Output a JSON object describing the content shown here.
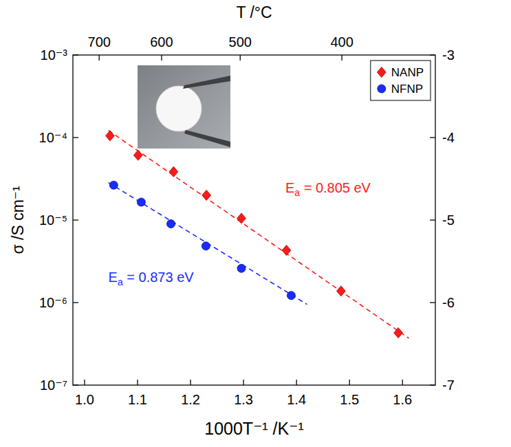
{
  "chart_data": {
    "type": "scatter",
    "x_label": "1000T⁻¹ /K⁻¹",
    "y_label": "σ /S cm⁻¹",
    "x2_label": "T /°C",
    "log": "y",
    "legend": "upper right",
    "xlim": [
      0.978,
      1.662
    ],
    "xticks": [
      {
        "value": 1,
        "label": "1.0"
      },
      1.1,
      1.2,
      1.3,
      1.4,
      1.5,
      1.6
    ],
    "ylim": [
      1e-07,
      0.001
    ],
    "yticks": [
      {
        "value": 1e-07,
        "label": "10⁻⁷"
      },
      {
        "value": 1e-06,
        "label": "10⁻⁶"
      },
      {
        "value": 1e-05,
        "label": "10⁻⁵"
      },
      {
        "value": 0.0001,
        "label": "10⁻⁴"
      },
      {
        "value": 0.001,
        "label": "10⁻³"
      }
    ],
    "x2ticks": [
      {
        "value": 1.0276,
        "label": "700"
      },
      {
        "value": 1.1453,
        "label": "600"
      },
      {
        "value": 1.2937,
        "label": "500"
      },
      {
        "value": 1.4856,
        "label": "400"
      }
    ],
    "y2lim": [
      -7,
      -3
    ],
    "y2ticks": [
      -7,
      -6,
      -5,
      -4,
      -3
    ],
    "series": [
      {
        "name": "NANP",
        "color": "#ff1a1a",
        "marker": "diamond",
        "line_style": "dashed",
        "x": [
          1.048,
          1.101,
          1.168,
          1.23,
          1.296,
          1.381,
          1.484,
          1.592
        ],
        "values": [
          0.000105,
          6.1e-05,
          3.85e-05,
          2e-05,
          1.05e-05,
          4.3e-06,
          1.38e-06,
          4.3e-07
        ],
        "fit": {
          "x": [
            1.045,
            1.612
          ],
          "values": [
            0.000122,
            3.7e-07
          ]
        }
      },
      {
        "name": "NFNP",
        "color": "#1a2bff",
        "marker": "circle",
        "line_style": "dashed",
        "x": [
          1.055,
          1.107,
          1.163,
          1.229,
          1.296,
          1.39
        ],
        "values": [
          2.65e-05,
          1.65e-05,
          9e-06,
          4.85e-06,
          2.6e-06,
          1.22e-06
        ],
        "fit": {
          "x": [
            1.045,
            1.42
          ],
          "values": [
            2.85e-05,
            9.5e-07
          ]
        }
      }
    ],
    "annotations": [
      {
        "text": "Ea = 0.805 eV",
        "color": "#ff1a1a",
        "x": 1.379,
        "y": 2.15e-05
      },
      {
        "text": "Ea = 0.873 eV",
        "color": "#1a2bff",
        "x": 1.045,
        "y": 1.78e-06
      }
    ]
  }
}
